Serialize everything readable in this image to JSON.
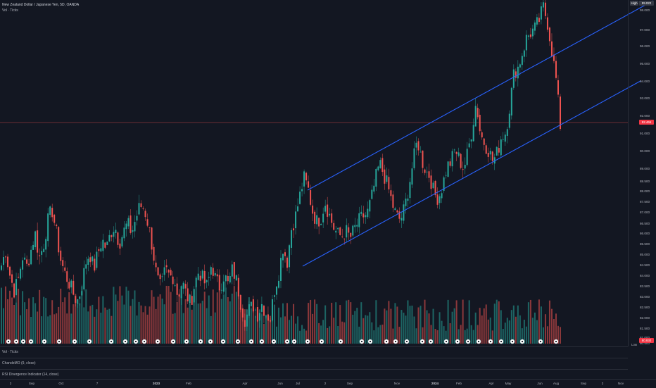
{
  "header": {
    "symbol_line": "New Zealand Dollar / Japanese Yen, 5D, OANDA",
    "vol_legend": "Vol · Ticks"
  },
  "panes": [
    {
      "label": "Vol · Ticks"
    },
    {
      "label": "ChandeMO (9, close)"
    },
    {
      "label": "RSI Divergence Indicator (14, close)"
    }
  ],
  "price_scale": {
    "labels": [
      "98.000",
      "97.000",
      "96.000",
      "95.000",
      "94.000",
      "93.000",
      "92.000",
      "91.000",
      "90.000",
      "89.000",
      "88.500",
      "88.000",
      "87.500",
      "87.000",
      "86.500",
      "86.000",
      "85.500",
      "85.000",
      "84.500",
      "84.000",
      "83.500",
      "83.000",
      "82.500",
      "82.000",
      "81.500",
      "81.000",
      "80.500"
    ],
    "high_tag": "High",
    "high_value": "99.022",
    "current_value": "92.466",
    "low_value": "80.930",
    "low_tag": "Low"
  },
  "time_axis": {
    "labels": [
      "2",
      "Sep",
      "Oct",
      "7",
      "2023",
      "Feb",
      "Apr",
      "Jun",
      "Jul",
      "2",
      "Sep",
      "Nov",
      "2024",
      "Feb",
      "Apr",
      "May",
      "Jun",
      "Aug",
      "Sep",
      "2",
      "Nov"
    ],
    "bold_labels": [
      "2023",
      "2024"
    ]
  },
  "colors": {
    "background": "#131722",
    "up": "#26a69a",
    "down": "#ef5350",
    "channel": "#2962ff",
    "price_line": "#ef5350"
  },
  "icons": {
    "event_marker": "dividend-marker-icon"
  },
  "chart_data": {
    "type": "candlestick",
    "title": "New Zealand Dollar / Japanese Yen, 5D, OANDA",
    "ylim": [
      80.5,
      99.3
    ],
    "close_approx": [
      84.8,
      85.6,
      84.3,
      83.4,
      84.0,
      85.3,
      84.7,
      85.6,
      86.6,
      85.2,
      85.9,
      87.2,
      87.9,
      86.7,
      85.2,
      84.4,
      83.9,
      83.3,
      82.8,
      83.5,
      84.9,
      85.5,
      84.6,
      85.5,
      86.2,
      85.7,
      86.6,
      87.0,
      86.0,
      86.6,
      87.1,
      86.6,
      87.4,
      88.1,
      87.9,
      87.0,
      85.7,
      84.1,
      83.5,
      84.6,
      84.2,
      84.2,
      83.1,
      83.9,
      83.2,
      82.7,
      83.8,
      84.5,
      84.0,
      83.6,
      84.9,
      84.0,
      83.6,
      84.3,
      83.7,
      84.6,
      83.9,
      82.7,
      81.8,
      82.4,
      82.6,
      82.1,
      82.7,
      82.1,
      81.9,
      83.5,
      84.4,
      85.8,
      85.0,
      86.8,
      87.5,
      88.6,
      89.6,
      89.0,
      87.8,
      87.2,
      87.4,
      88.3,
      87.6,
      86.9,
      86.5,
      86.4,
      86.7,
      86.3,
      86.8,
      87.2,
      87.5,
      87.6,
      88.4,
      89.5,
      90.4,
      89.8,
      89.1,
      88.2,
      87.5,
      87.3,
      88.0,
      89.2,
      90.5,
      91.7,
      90.6,
      90.0,
      89.7,
      88.7,
      88.5,
      89.2,
      90.2,
      90.5,
      91.2,
      90.6,
      90.1,
      91.0,
      92.3,
      93.8,
      92.0,
      91.5,
      91.1,
      90.5,
      91.0,
      91.9,
      92.1,
      93.6,
      95.4,
      95.7,
      96.5,
      97.3,
      97.6,
      97.8,
      98.3,
      99.0,
      98.1,
      96.6,
      95.0,
      92.5
    ],
    "channel_upper": [
      {
        "x": "2023-07",
        "y": 88.7
      },
      {
        "x": "2024-07",
        "y": 99.1
      }
    ],
    "channel_lower": [
      {
        "x": "2023-07",
        "y": 84.6
      },
      {
        "x": "2024-07",
        "y": 94.7
      }
    ],
    "current_price": 92.466,
    "high": 99.022,
    "low": 80.93
  }
}
